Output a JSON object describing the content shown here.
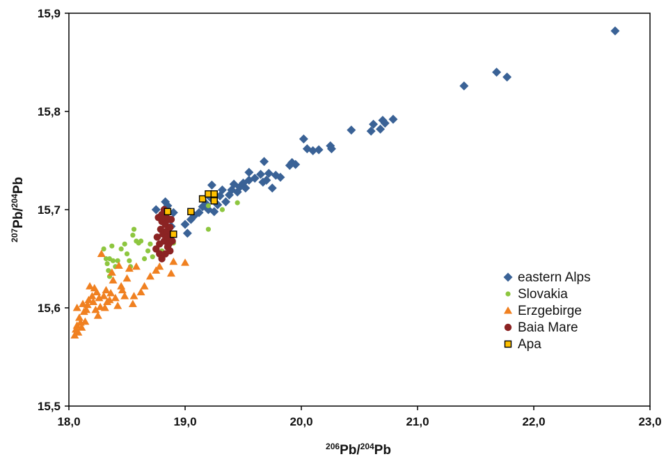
{
  "chart_data": {
    "type": "scatter",
    "xlabel": {
      "sup": "206",
      "main": "Pb/",
      "sup2": "204",
      "main2": "Pb"
    },
    "ylabel": {
      "sup": "207",
      "main": "Pb/",
      "sup2": "204",
      "main2": "Pb"
    },
    "xlim": [
      18.0,
      23.0
    ],
    "ylim": [
      15.5,
      15.9
    ],
    "x_ticks": [
      18.0,
      19.0,
      20.0,
      21.0,
      22.0,
      23.0
    ],
    "y_ticks": [
      15.5,
      15.6,
      15.7,
      15.8,
      15.9
    ],
    "x_tick_labels": [
      "18,0",
      "19,0",
      "20,0",
      "21,0",
      "22,0",
      "23,0"
    ],
    "y_tick_labels": [
      "15,5",
      "15,6",
      "15,7",
      "15,8",
      "15,9"
    ],
    "grid": false,
    "legend_position": "lower-right",
    "series": [
      {
        "name": "eastern Alps",
        "marker": "diamond",
        "color": "#3A6296",
        "points": [
          [
            18.75,
            15.7
          ],
          [
            18.83,
            15.708
          ],
          [
            18.85,
            15.704
          ],
          [
            18.8,
            15.695
          ],
          [
            18.9,
            15.697
          ],
          [
            18.88,
            15.683
          ],
          [
            19.0,
            15.685
          ],
          [
            19.02,
            15.676
          ],
          [
            19.05,
            15.69
          ],
          [
            19.08,
            15.694
          ],
          [
            19.12,
            15.697
          ],
          [
            19.15,
            15.703
          ],
          [
            19.18,
            15.706
          ],
          [
            19.2,
            15.7
          ],
          [
            19.22,
            15.712
          ],
          [
            19.25,
            15.698
          ],
          [
            19.23,
            15.725
          ],
          [
            19.28,
            15.705
          ],
          [
            19.3,
            15.714
          ],
          [
            19.32,
            15.72
          ],
          [
            19.35,
            15.708
          ],
          [
            19.38,
            15.715
          ],
          [
            19.4,
            15.72
          ],
          [
            19.42,
            15.726
          ],
          [
            19.45,
            15.718
          ],
          [
            19.47,
            15.723
          ],
          [
            19.5,
            15.727
          ],
          [
            19.52,
            15.722
          ],
          [
            19.55,
            15.738
          ],
          [
            19.55,
            15.73
          ],
          [
            19.6,
            15.732
          ],
          [
            19.65,
            15.736
          ],
          [
            19.67,
            15.728
          ],
          [
            19.68,
            15.749
          ],
          [
            19.7,
            15.73
          ],
          [
            19.72,
            15.737
          ],
          [
            19.75,
            15.722
          ],
          [
            19.78,
            15.735
          ],
          [
            19.82,
            15.733
          ],
          [
            19.9,
            15.745
          ],
          [
            19.92,
            15.748
          ],
          [
            19.95,
            15.746
          ],
          [
            20.02,
            15.772
          ],
          [
            20.05,
            15.762
          ],
          [
            20.1,
            15.76
          ],
          [
            20.15,
            15.761
          ],
          [
            20.25,
            15.765
          ],
          [
            20.26,
            15.762
          ],
          [
            20.43,
            15.781
          ],
          [
            20.6,
            15.78
          ],
          [
            20.62,
            15.787
          ],
          [
            20.68,
            15.782
          ],
          [
            20.7,
            15.791
          ],
          [
            20.72,
            15.788
          ],
          [
            20.79,
            15.792
          ],
          [
            21.4,
            15.826
          ],
          [
            21.68,
            15.84
          ],
          [
            21.77,
            15.835
          ],
          [
            22.7,
            15.882
          ]
        ]
      },
      {
        "name": "Slovakia",
        "marker": "circle",
        "color": "#8DC63F",
        "points": [
          [
            18.3,
            15.66
          ],
          [
            18.32,
            15.65
          ],
          [
            18.33,
            15.645
          ],
          [
            18.34,
            15.638
          ],
          [
            18.35,
            15.632
          ],
          [
            18.35,
            15.65
          ],
          [
            18.37,
            15.663
          ],
          [
            18.38,
            15.648
          ],
          [
            18.4,
            15.642
          ],
          [
            18.42,
            15.648
          ],
          [
            18.45,
            15.66
          ],
          [
            18.48,
            15.665
          ],
          [
            18.5,
            15.655
          ],
          [
            18.52,
            15.648
          ],
          [
            18.53,
            15.642
          ],
          [
            18.55,
            15.674
          ],
          [
            18.56,
            15.68
          ],
          [
            18.58,
            15.668
          ],
          [
            18.6,
            15.666
          ],
          [
            18.62,
            15.668
          ],
          [
            18.65,
            15.65
          ],
          [
            18.68,
            15.658
          ],
          [
            18.7,
            15.665
          ],
          [
            18.72,
            15.652
          ],
          [
            18.75,
            15.672
          ],
          [
            18.78,
            15.68
          ],
          [
            18.8,
            15.658
          ],
          [
            18.82,
            15.676
          ],
          [
            18.85,
            15.67
          ],
          [
            18.88,
            15.668
          ],
          [
            18.9,
            15.666
          ],
          [
            19.2,
            15.704
          ],
          [
            19.2,
            15.68
          ],
          [
            19.32,
            15.7
          ],
          [
            19.45,
            15.707
          ]
        ]
      },
      {
        "name": "Erzgebirge",
        "marker": "triangle",
        "color": "#F08020",
        "points": [
          [
            18.05,
            15.572
          ],
          [
            18.06,
            15.578
          ],
          [
            18.07,
            15.582
          ],
          [
            18.07,
            15.6
          ],
          [
            18.08,
            15.575
          ],
          [
            18.09,
            15.59
          ],
          [
            18.1,
            15.585
          ],
          [
            18.11,
            15.58
          ],
          [
            18.12,
            15.604
          ],
          [
            18.13,
            15.596
          ],
          [
            18.14,
            15.586
          ],
          [
            18.15,
            15.598
          ],
          [
            18.16,
            15.603
          ],
          [
            18.17,
            15.608
          ],
          [
            18.18,
            15.622
          ],
          [
            18.2,
            15.612
          ],
          [
            18.21,
            15.606
          ],
          [
            18.22,
            15.62
          ],
          [
            18.23,
            15.598
          ],
          [
            18.24,
            15.616
          ],
          [
            18.25,
            15.592
          ],
          [
            18.26,
            15.61
          ],
          [
            18.27,
            15.601
          ],
          [
            18.28,
            15.655
          ],
          [
            18.3,
            15.612
          ],
          [
            18.31,
            15.6
          ],
          [
            18.32,
            15.618
          ],
          [
            18.33,
            15.606
          ],
          [
            18.35,
            15.608
          ],
          [
            18.36,
            15.615
          ],
          [
            18.37,
            15.636
          ],
          [
            18.38,
            15.628
          ],
          [
            18.4,
            15.61
          ],
          [
            18.42,
            15.602
          ],
          [
            18.43,
            15.643
          ],
          [
            18.45,
            15.622
          ],
          [
            18.46,
            15.618
          ],
          [
            18.48,
            15.612
          ],
          [
            18.5,
            15.63
          ],
          [
            18.52,
            15.64
          ],
          [
            18.55,
            15.604
          ],
          [
            18.56,
            15.612
          ],
          [
            18.58,
            15.642
          ],
          [
            18.62,
            15.616
          ],
          [
            18.65,
            15.622
          ],
          [
            18.7,
            15.632
          ],
          [
            18.75,
            15.638
          ],
          [
            18.78,
            15.642
          ],
          [
            18.88,
            15.635
          ],
          [
            18.9,
            15.647
          ],
          [
            19.0,
            15.646
          ]
        ]
      },
      {
        "name": "Baia Mare",
        "marker": "circle",
        "color": "#8B2323",
        "points": [
          [
            18.75,
            15.66
          ],
          [
            18.76,
            15.672
          ],
          [
            18.77,
            15.692
          ],
          [
            18.78,
            15.655
          ],
          [
            18.78,
            15.665
          ],
          [
            18.79,
            15.68
          ],
          [
            18.8,
            15.65
          ],
          [
            18.8,
            15.688
          ],
          [
            18.8,
            15.695
          ],
          [
            18.81,
            15.675
          ],
          [
            18.82,
            15.7
          ],
          [
            18.82,
            15.668
          ],
          [
            18.83,
            15.655
          ],
          [
            18.83,
            15.685
          ],
          [
            18.84,
            15.692
          ],
          [
            18.84,
            15.678
          ],
          [
            18.85,
            15.662
          ],
          [
            18.85,
            15.672
          ],
          [
            18.86,
            15.69
          ],
          [
            18.86,
            15.665
          ],
          [
            18.87,
            15.682
          ],
          [
            18.87,
            15.658
          ],
          [
            18.88,
            15.675
          ],
          [
            18.88,
            15.69
          ],
          [
            18.89,
            15.668
          ]
        ]
      },
      {
        "name": "Apa",
        "marker": "square",
        "color": "#FFC000",
        "points": [
          [
            18.85,
            15.698
          ],
          [
            18.9,
            15.675
          ],
          [
            19.05,
            15.698
          ],
          [
            19.15,
            15.711
          ],
          [
            19.2,
            15.716
          ],
          [
            19.25,
            15.716
          ],
          [
            19.25,
            15.709
          ]
        ]
      }
    ]
  },
  "colors": {
    "axis": "#000000",
    "marker_edge_square": "#000000"
  }
}
